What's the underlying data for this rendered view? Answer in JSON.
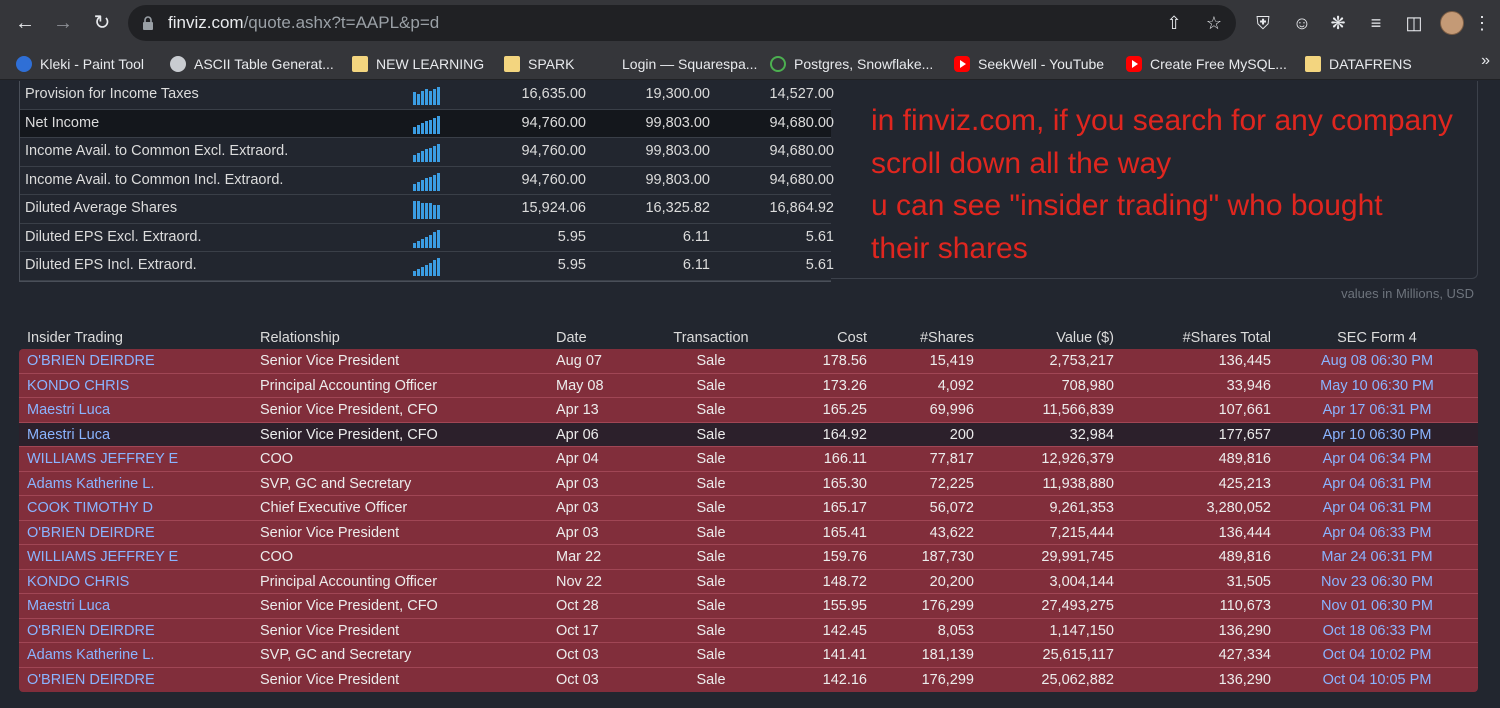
{
  "browser": {
    "url_host": "finviz.com",
    "url_path": "/quote.ashx?t=AAPL&p=d",
    "bookmarks": [
      {
        "label": "Kleki - Paint Tool",
        "icon": "kleki-icon"
      },
      {
        "label": "ASCII Table Generat...",
        "icon": "globe-icon"
      },
      {
        "label": "NEW LEARNING",
        "icon": "folder-icon"
      },
      {
        "label": "SPARK",
        "icon": "folder-icon"
      },
      {
        "label": "Login — Squarespa...",
        "icon": "squarespace-icon"
      },
      {
        "label": "Postgres, Snowflake...",
        "icon": "search-icon"
      },
      {
        "label": "SeekWell - YouTube",
        "icon": "youtube-icon"
      },
      {
        "label": "Create Free MySQL...",
        "icon": "youtube-icon"
      },
      {
        "label": "DATAFRENS",
        "icon": "folder-icon"
      }
    ],
    "bookmarks_more": "»"
  },
  "financials": {
    "rows": [
      {
        "label": "Provision for Income Taxes",
        "values": [
          "16,635.00",
          "19,300.00",
          "14,527.00"
        ],
        "highlight": false,
        "spark": [
          7,
          6,
          8,
          9,
          8,
          9,
          10
        ]
      },
      {
        "label": "Net Income",
        "values": [
          "94,760.00",
          "99,803.00",
          "94,680.00"
        ],
        "highlight": true,
        "spark": [
          4,
          5,
          6,
          7,
          8,
          9,
          10
        ]
      },
      {
        "label": "Income Avail. to Common Excl. Extraord.",
        "values": [
          "94,760.00",
          "99,803.00",
          "94,680.00"
        ],
        "highlight": false,
        "spark": [
          4,
          5,
          6,
          7,
          8,
          9,
          10
        ]
      },
      {
        "label": "Income Avail. to Common Incl. Extraord.",
        "values": [
          "94,760.00",
          "99,803.00",
          "94,680.00"
        ],
        "highlight": false,
        "spark": [
          4,
          5,
          6,
          7,
          8,
          9,
          10
        ]
      },
      {
        "label": "Diluted Average Shares",
        "values": [
          "15,924.06",
          "16,325.82",
          "16,864.92"
        ],
        "highlight": false,
        "spark": [
          10,
          10,
          9,
          9,
          9,
          8,
          8
        ]
      },
      {
        "label": "Diluted EPS Excl. Extraord.",
        "values": [
          "5.95",
          "6.11",
          "5.61"
        ],
        "highlight": false,
        "spark": [
          3,
          4,
          5,
          6,
          7,
          9,
          10
        ]
      },
      {
        "label": "Diluted EPS Incl. Extraord.",
        "values": [
          "5.95",
          "6.11",
          "5.61"
        ],
        "highlight": false,
        "spark": [
          3,
          4,
          5,
          6,
          7,
          9,
          10
        ]
      }
    ],
    "units_note": "values in Millions, USD"
  },
  "annotation": {
    "lines": [
      "in finviz.com, if you search for any company",
      "scroll down all the way",
      "u can see \"insider trading\" who bought",
      "their shares"
    ],
    "color": "#e0261f"
  },
  "insider": {
    "headers": [
      "Insider Trading",
      "Relationship",
      "Date",
      "Transaction",
      "Cost",
      "#Shares",
      "Value ($)",
      "#Shares Total",
      "SEC Form 4"
    ],
    "rows": [
      [
        "O'BRIEN DEIRDRE",
        "Senior Vice President",
        "Aug 07",
        "Sale",
        "178.56",
        "15,419",
        "2,753,217",
        "136,445",
        "Aug 08 06:30 PM"
      ],
      [
        "KONDO CHRIS",
        "Principal Accounting Officer",
        "May 08",
        "Sale",
        "173.26",
        "4,092",
        "708,980",
        "33,946",
        "May 10 06:30 PM"
      ],
      [
        "Maestri Luca",
        "Senior Vice President, CFO",
        "Apr 13",
        "Sale",
        "165.25",
        "69,996",
        "11,566,839",
        "107,661",
        "Apr 17 06:31 PM"
      ],
      [
        "Maestri Luca",
        "Senior Vice President, CFO",
        "Apr 06",
        "Sale",
        "164.92",
        "200",
        "32,984",
        "177,657",
        "Apr 10 06:30 PM"
      ],
      [
        "WILLIAMS JEFFREY E",
        "COO",
        "Apr 04",
        "Sale",
        "166.11",
        "77,817",
        "12,926,379",
        "489,816",
        "Apr 04 06:34 PM"
      ],
      [
        "Adams Katherine L.",
        "SVP, GC and Secretary",
        "Apr 03",
        "Sale",
        "165.30",
        "72,225",
        "11,938,880",
        "425,213",
        "Apr 04 06:31 PM"
      ],
      [
        "COOK TIMOTHY D",
        "Chief Executive Officer",
        "Apr 03",
        "Sale",
        "165.17",
        "56,072",
        "9,261,353",
        "3,280,052",
        "Apr 04 06:31 PM"
      ],
      [
        "O'BRIEN DEIRDRE",
        "Senior Vice President",
        "Apr 03",
        "Sale",
        "165.41",
        "43,622",
        "7,215,444",
        "136,444",
        "Apr 04 06:33 PM"
      ],
      [
        "WILLIAMS JEFFREY E",
        "COO",
        "Mar 22",
        "Sale",
        "159.76",
        "187,730",
        "29,991,745",
        "489,816",
        "Mar 24 06:31 PM"
      ],
      [
        "KONDO CHRIS",
        "Principal Accounting Officer",
        "Nov 22",
        "Sale",
        "148.72",
        "20,200",
        "3,004,144",
        "31,505",
        "Nov 23 06:30 PM"
      ],
      [
        "Maestri Luca",
        "Senior Vice President, CFO",
        "Oct 28",
        "Sale",
        "155.95",
        "176,299",
        "27,493,275",
        "110,673",
        "Nov 01 06:30 PM"
      ],
      [
        "O'BRIEN DEIRDRE",
        "Senior Vice President",
        "Oct 17",
        "Sale",
        "142.45",
        "8,053",
        "1,147,150",
        "136,290",
        "Oct 18 06:33 PM"
      ],
      [
        "Adams Katherine L.",
        "SVP, GC and Secretary",
        "Oct 03",
        "Sale",
        "141.41",
        "181,139",
        "25,615,117",
        "427,334",
        "Oct 04 10:02 PM"
      ],
      [
        "O'BRIEN DEIRDRE",
        "Senior Vice President",
        "Oct 03",
        "Sale",
        "142.16",
        "176,299",
        "25,062,882",
        "136,290",
        "Oct 04 10:05 PM"
      ]
    ],
    "dark_row_index": 3,
    "sale_row_color": "#812e3b"
  }
}
